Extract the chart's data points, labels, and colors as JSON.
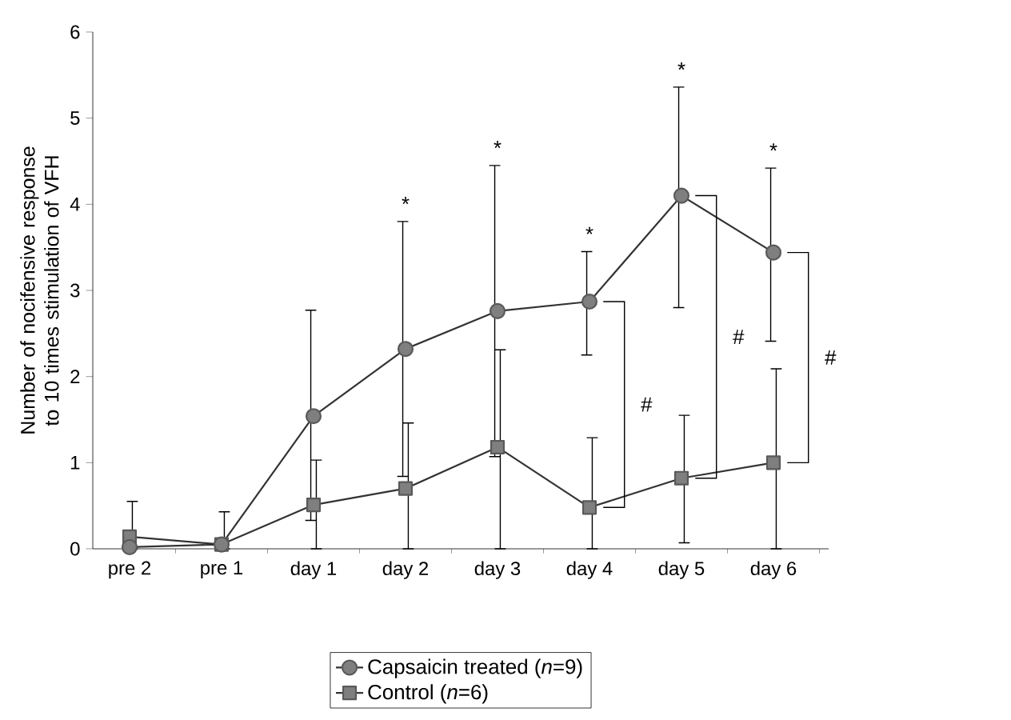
{
  "chart_data": {
    "type": "line",
    "ylabel": "Number of nocifensive response to 10 times stimulation of VFH",
    "categories": [
      "pre 2",
      "pre 1",
      "day 1",
      "day 2",
      "day 3",
      "day 4",
      "day 5",
      "day 6"
    ],
    "series": [
      {
        "name": "Capsaicin treated (*n*=9)",
        "color": "#7f7f7f",
        "marker": "circle",
        "values": [
          0.02,
          0.05,
          1.54,
          2.32,
          2.76,
          2.87,
          4.1,
          3.44
        ],
        "errors": [
          null,
          null,
          [
            0.33,
            2.77
          ],
          [
            0.84,
            3.8
          ],
          [
            1.07,
            4.45
          ],
          [
            2.25,
            3.45
          ],
          [
            2.8,
            5.36
          ],
          [
            2.41,
            4.42
          ]
        ]
      },
      {
        "name": "Control (*n*=6)",
        "color": "#7f7f7f",
        "marker": "square",
        "values": [
          0.14,
          0.05,
          0.51,
          0.7,
          1.18,
          0.48,
          0.82,
          1.0
        ],
        "errors": [
          [
            0,
            0.55
          ],
          [
            0,
            0.43
          ],
          [
            0,
            1.03
          ],
          [
            0,
            1.46
          ],
          [
            0,
            2.31
          ],
          [
            0,
            1.29
          ],
          [
            0.07,
            1.55
          ],
          [
            0,
            2.09
          ]
        ]
      }
    ],
    "ylim": [
      0,
      6
    ],
    "yticks": [
      0,
      1,
      2,
      3,
      4,
      5,
      6
    ],
    "grid": false,
    "legend": "bottom",
    "line_style": "solid",
    "annotations": [
      "*",
      "*",
      "*",
      "*",
      "*",
      "#",
      "#",
      "#"
    ]
  }
}
